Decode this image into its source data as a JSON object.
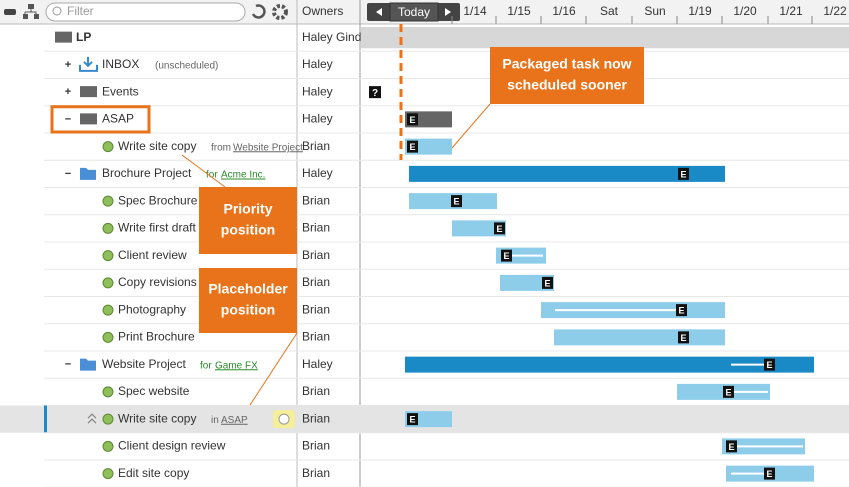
{
  "toolbar": {
    "filter_placeholder": "Filter",
    "owners_header": "Owners",
    "today_button": "Today",
    "dates": [
      "1/14",
      "1/15",
      "1/16",
      "Sat",
      "Sun",
      "1/19",
      "1/20",
      "1/21",
      "1/22"
    ]
  },
  "rows": [
    {
      "name": "LP",
      "owner": "Haley Gind"
    },
    {
      "name": "INBOX",
      "note": "(unscheduled)",
      "owner": "Haley"
    },
    {
      "name": "Events",
      "owner": "Haley"
    },
    {
      "name": "ASAP",
      "owner": "Haley"
    },
    {
      "name": "Write site copy",
      "note": "from",
      "note_link": "Website Project",
      "owner": "Brian"
    },
    {
      "name": "Brochure Project",
      "note": "for",
      "note_link": "Acme Inc.",
      "owner": "Haley"
    },
    {
      "name": "Spec Brochure",
      "owner": "Brian"
    },
    {
      "name": "Write first draft",
      "owner": "Brian"
    },
    {
      "name": "Client review",
      "owner": "Brian"
    },
    {
      "name": "Copy revisions",
      "owner": "Brian"
    },
    {
      "name": "Photography",
      "owner": "Brian"
    },
    {
      "name": "Print Brochure",
      "owner": "Brian"
    },
    {
      "name": "Website Project",
      "note": "for",
      "note_link": "Game FX",
      "owner": "Haley"
    },
    {
      "name": "Spec website",
      "owner": "Brian"
    },
    {
      "name": "Write site copy",
      "note": "in",
      "note_link": "ASAP",
      "owner": "Brian"
    },
    {
      "name": "Client design review",
      "owner": "Brian"
    },
    {
      "name": "Edit site copy",
      "owner": "Brian"
    }
  ],
  "callouts": [
    {
      "lines": [
        "Packaged task now",
        "scheduled sooner"
      ]
    },
    {
      "lines": [
        "Priority",
        "position"
      ]
    },
    {
      "lines": [
        "Placeholder",
        "position"
      ]
    }
  ]
}
